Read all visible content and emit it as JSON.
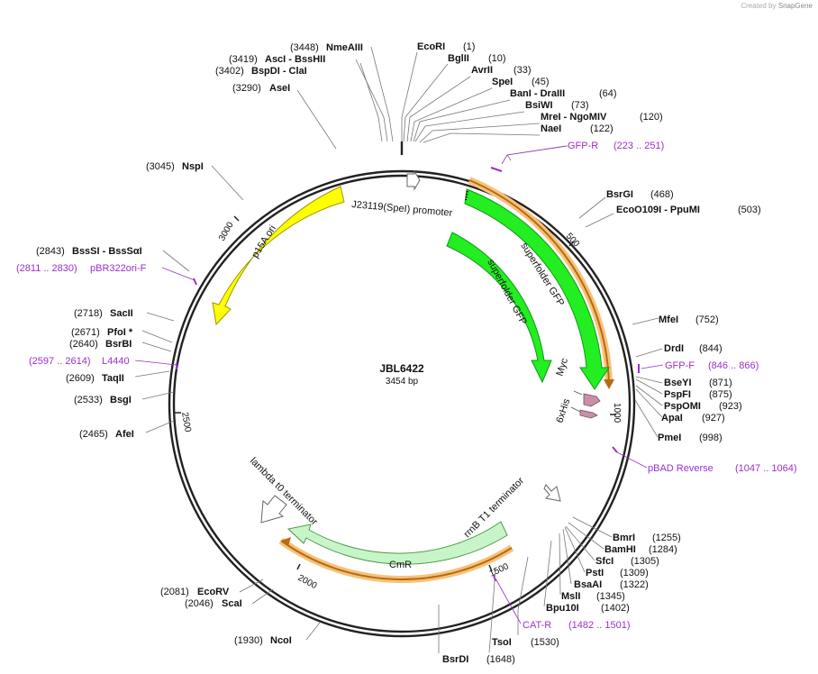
{
  "credit": {
    "prefix": "Created by",
    "brand": "SnapGene"
  },
  "plasmid": {
    "name": "JBL6422",
    "size_label": "3454 bp",
    "length": 3454
  },
  "ticks": [
    {
      "pos": 500,
      "label": "500"
    },
    {
      "pos": 1000,
      "label": "1000"
    },
    {
      "pos": 1500,
      "label": "1500"
    },
    {
      "pos": 2000,
      "label": "2000"
    },
    {
      "pos": 2500,
      "label": "2500"
    },
    {
      "pos": 3000,
      "label": "3000"
    }
  ],
  "features": [
    {
      "name": "J23119(SpeI) promoter",
      "type": "promoter"
    },
    {
      "name": "superfolder GFP",
      "type": "cds",
      "color": "#22ee22"
    },
    {
      "name": "superfolder GFP",
      "type": "cds",
      "color": "#22ee22"
    },
    {
      "name": "p15A ori",
      "type": "origin",
      "color": "#ffff00"
    },
    {
      "name": "Myc",
      "type": "tag",
      "color": "#c890a8"
    },
    {
      "name": "6xHis",
      "type": "tag",
      "color": "#c890a8"
    },
    {
      "name": "rrnB T1 terminator",
      "type": "terminator"
    },
    {
      "name": "lambda t0 terminator",
      "type": "terminator"
    },
    {
      "name": "CmR",
      "type": "cds",
      "color": "#c8f5c8"
    }
  ],
  "enzymes": [
    {
      "name": "EcoRI",
      "pos": "(1)"
    },
    {
      "name": "BglII",
      "pos": "(10)"
    },
    {
      "name": "AvrII",
      "pos": "(33)"
    },
    {
      "name": "SpeI",
      "pos": "(45)"
    },
    {
      "name": "BanI - DraIII",
      "pos": "(64)"
    },
    {
      "name": "BsiWI",
      "pos": "(73)"
    },
    {
      "name": "MreI - NgoMIV",
      "pos": "(120)"
    },
    {
      "name": "NaeI",
      "pos": "(122)"
    },
    {
      "name": "BsrGI",
      "pos": "(468)"
    },
    {
      "name": "EcoO109I - PpuMI",
      "pos": "(503)"
    },
    {
      "name": "MfeI",
      "pos": "(752)"
    },
    {
      "name": "DrdI",
      "pos": "(844)"
    },
    {
      "name": "BseYI",
      "pos": "(871)"
    },
    {
      "name": "PspFI",
      "pos": "(875)"
    },
    {
      "name": "PspOMI",
      "pos": "(923)"
    },
    {
      "name": "ApaI",
      "pos": "(927)"
    },
    {
      "name": "PmeI",
      "pos": "(998)"
    },
    {
      "name": "BmrI",
      "pos": "(1255)"
    },
    {
      "name": "BamHI",
      "pos": "(1284)"
    },
    {
      "name": "SfcI",
      "pos": "(1305)"
    },
    {
      "name": "PstI",
      "pos": "(1309)"
    },
    {
      "name": "BsaAI",
      "pos": "(1322)"
    },
    {
      "name": "MslI",
      "pos": "(1345)"
    },
    {
      "name": "Bpu10I",
      "pos": "(1402)"
    },
    {
      "name": "TsoI",
      "pos": "(1530)"
    },
    {
      "name": "BsrDI",
      "pos": "(1648)"
    },
    {
      "name": "NcoI",
      "pos": "(1930)"
    },
    {
      "name": "ScaI",
      "pos": "(2046)"
    },
    {
      "name": "EcoRV",
      "pos": "(2081)"
    },
    {
      "name": "AfeI",
      "pos": "(2465)"
    },
    {
      "name": "BsgI",
      "pos": "(2533)"
    },
    {
      "name": "TaqII",
      "pos": "(2609)"
    },
    {
      "name": "BsrBI",
      "pos": "(2640)"
    },
    {
      "name": "PfoI *",
      "pos": "(2671)"
    },
    {
      "name": "SacII",
      "pos": "(2718)"
    },
    {
      "name": "BssSI - BssSαI",
      "pos": "(2843)"
    },
    {
      "name": "NspI",
      "pos": "(3045)"
    },
    {
      "name": "AseI",
      "pos": "(3290)"
    },
    {
      "name": "BspDI - ClaI",
      "pos": "(3402)"
    },
    {
      "name": "AscI - BssHII",
      "pos": "(3419)"
    },
    {
      "name": "NmeAIII",
      "pos": "(3448)"
    }
  ],
  "primers": [
    {
      "name": "GFP-R",
      "range": "(223 .. 251)"
    },
    {
      "name": "GFP-F",
      "range": "(846 .. 866)"
    },
    {
      "name": "pBAD Reverse",
      "range": "(1047 .. 1064)"
    },
    {
      "name": "CAT-R",
      "range": "(1482 .. 1501)"
    },
    {
      "name": "L4440",
      "range": "(2597 .. 2614)"
    },
    {
      "name": "pBR322ori-F",
      "range": "(2811 .. 2830)"
    }
  ]
}
